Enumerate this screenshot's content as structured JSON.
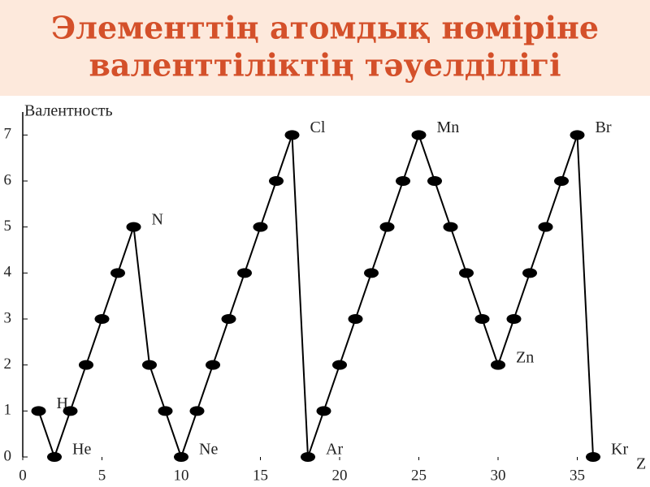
{
  "chart_data": {
    "type": "line",
    "title": [
      "Элементтің атомдық нөміріне",
      "валенттіліктің тәуелділігі"
    ],
    "y_label": "Валентность",
    "x_label": "Z",
    "x": [
      1,
      2,
      3,
      4,
      5,
      6,
      7,
      8,
      9,
      10,
      11,
      12,
      13,
      14,
      15,
      16,
      17,
      18,
      19,
      20,
      21,
      22,
      23,
      24,
      25,
      26,
      27,
      28,
      29,
      30,
      31,
      32,
      33,
      34,
      35,
      36
    ],
    "values": [
      1,
      0,
      1,
      2,
      3,
      4,
      5,
      2,
      1,
      0,
      1,
      2,
      3,
      4,
      5,
      6,
      7,
      0,
      1,
      2,
      3,
      4,
      5,
      6,
      7,
      6,
      5,
      4,
      3,
      2,
      3,
      4,
      5,
      6,
      7,
      0
    ],
    "point_labels": [
      "H",
      "He",
      null,
      null,
      null,
      null,
      "N",
      null,
      null,
      "Ne",
      null,
      null,
      null,
      null,
      null,
      null,
      "Cl",
      "Ar",
      null,
      null,
      null,
      null,
      null,
      null,
      "Mn",
      null,
      null,
      null,
      null,
      "Zn",
      null,
      null,
      null,
      null,
      "Br",
      "Kr"
    ],
    "color": "#000000",
    "xlim": [
      0,
      38
    ],
    "ylim": [
      0,
      7.5
    ],
    "xticks": [
      0,
      5,
      10,
      15,
      20,
      25,
      30,
      35
    ],
    "yticks": [
      0,
      1,
      2,
      3,
      4,
      5,
      6,
      7
    ]
  }
}
